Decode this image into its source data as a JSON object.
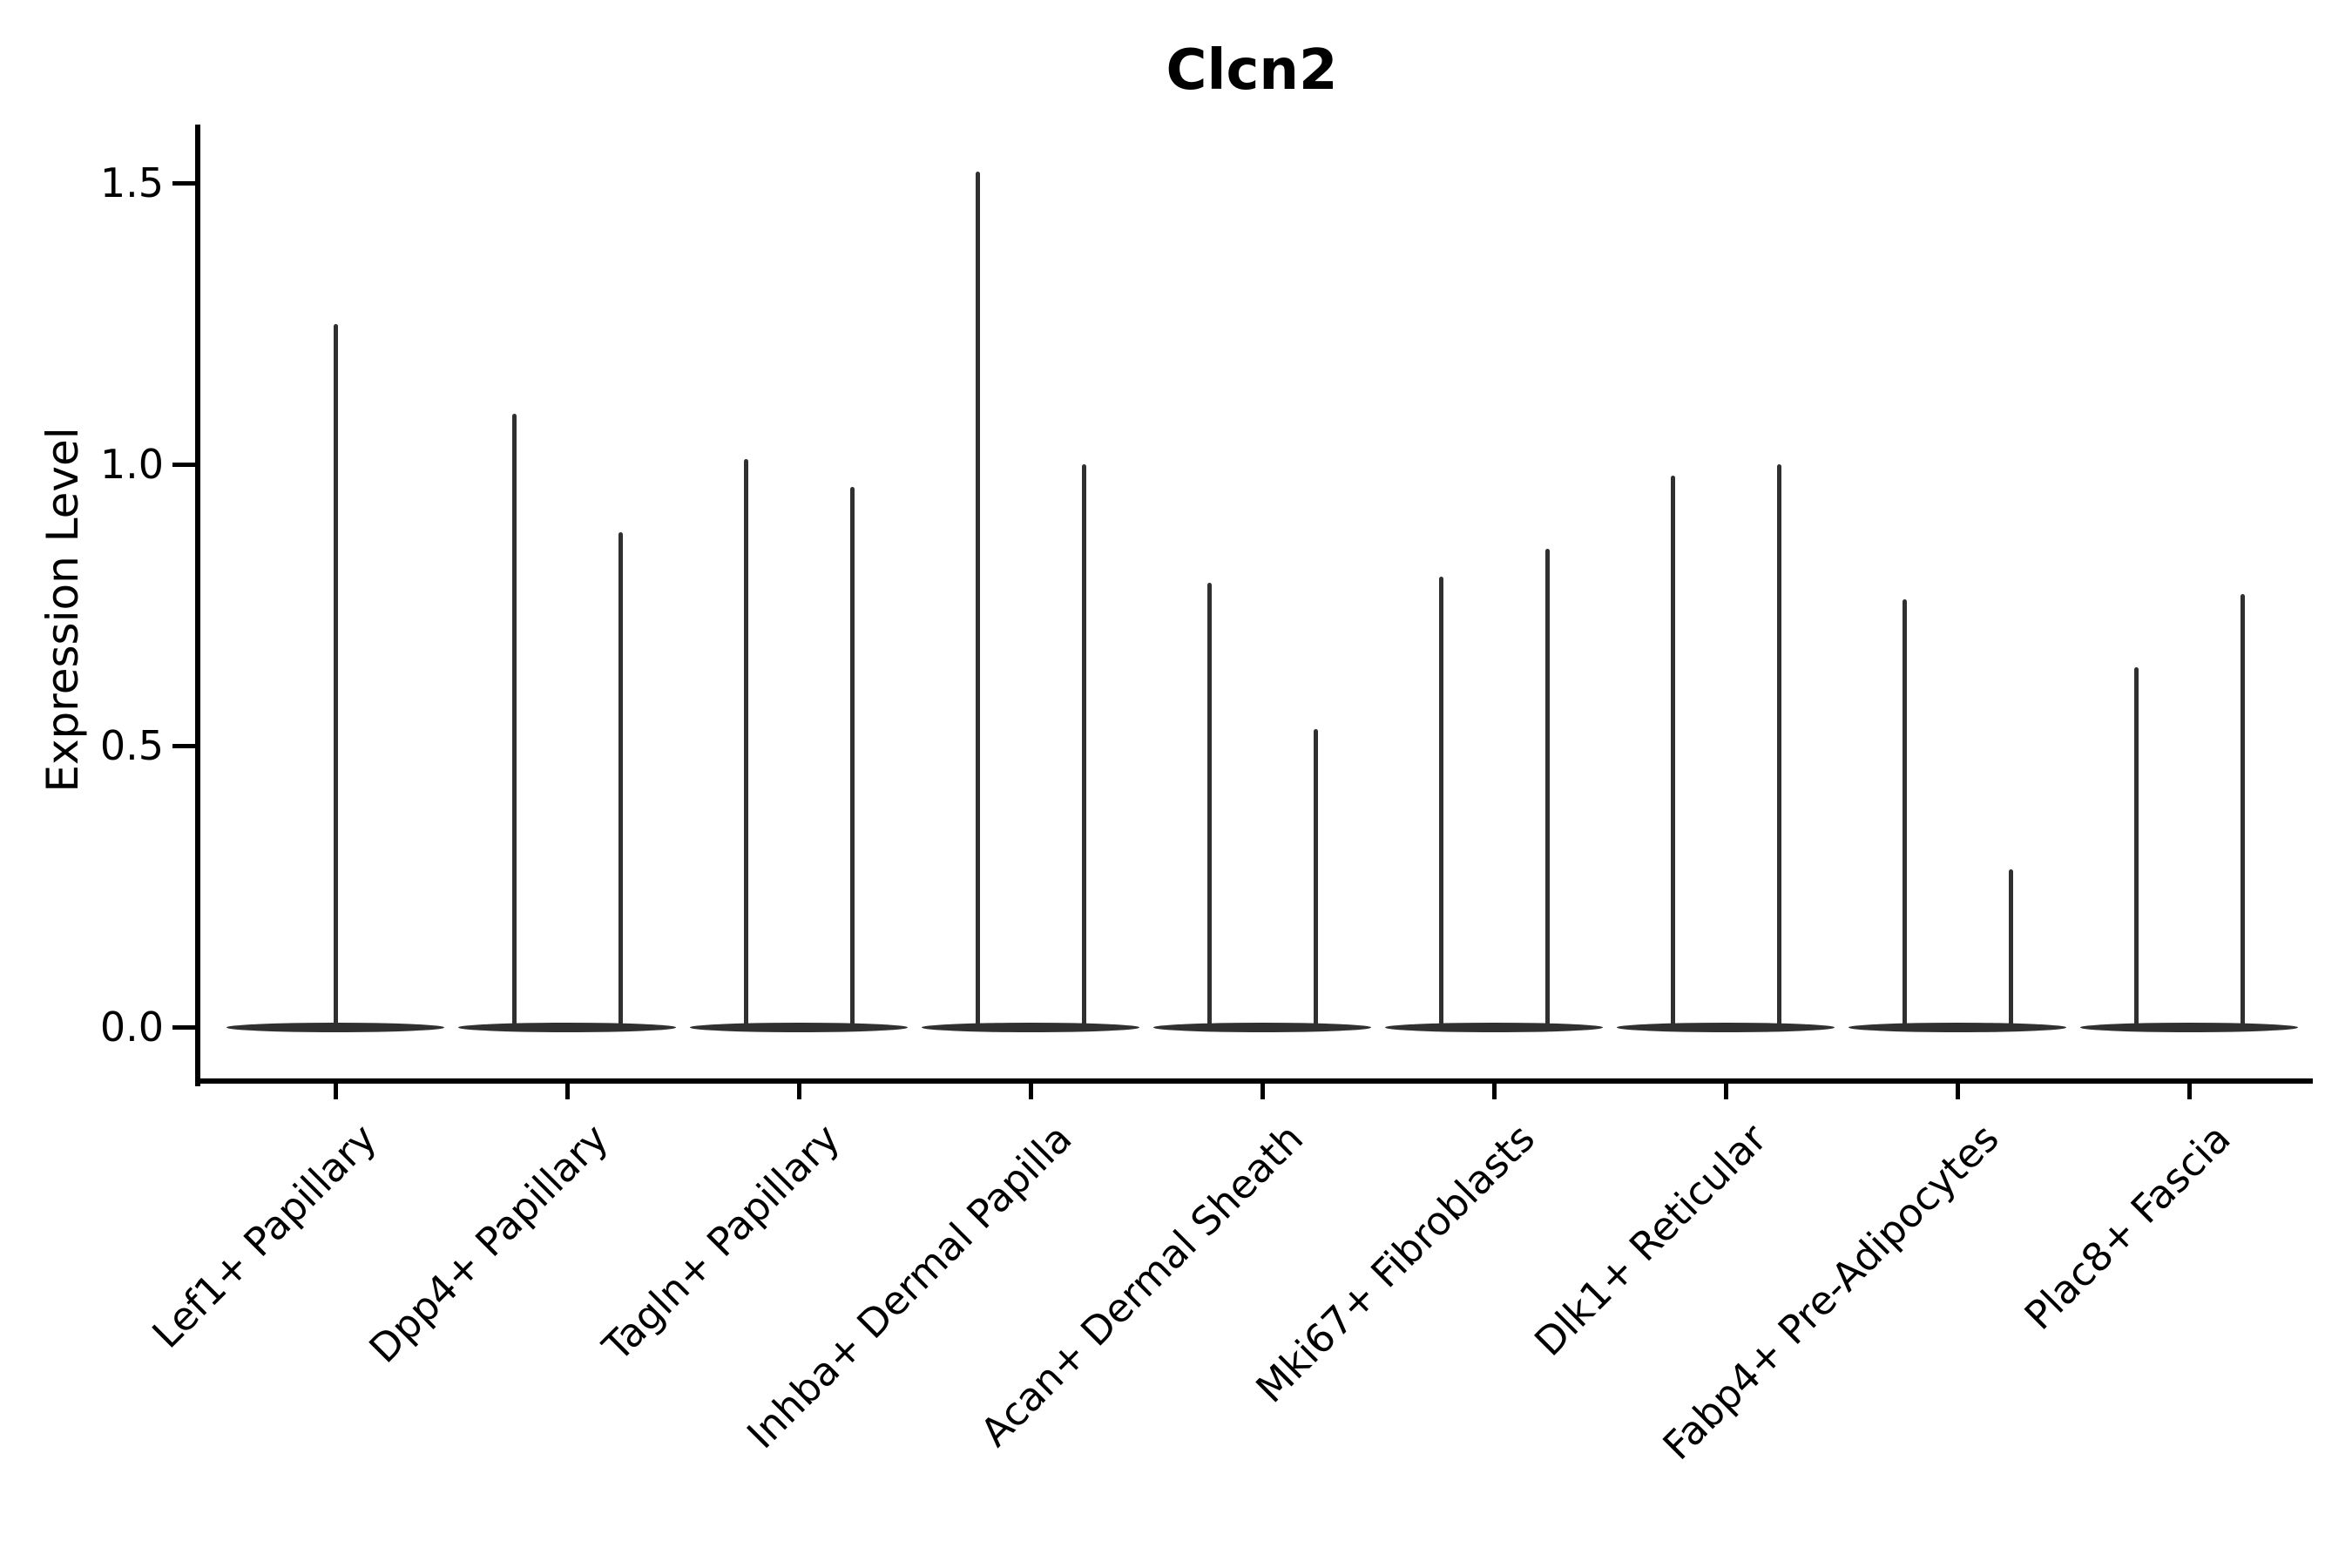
{
  "title": "Clcn2",
  "y_axis": {
    "label": "Expression Level",
    "tick_labels": [
      "0.0",
      "0.5",
      "1.0",
      "1.5"
    ]
  },
  "colors": {
    "background": "#ffffff",
    "axis": "#000000",
    "text": "#000000",
    "violin": "#303030"
  },
  "chart_data": {
    "type": "violin",
    "title": "Clcn2",
    "xlabel": "",
    "ylabel": "Expression Level",
    "yticks": [
      0.0,
      0.5,
      1.0,
      1.5
    ],
    "ylim": [
      -0.095,
      1.6
    ],
    "grid": false,
    "legend_position": "none",
    "categories": [
      "Lef1+ Papillary",
      "Dpp4+ Papillary",
      "Tagln+ Papillary",
      "Inhba+ Dermal Papilla",
      "Acan+ Dermal Sheath",
      "Mki67+ Fibroblasts",
      "Dlk1+ Reticular",
      "Fabp4+ Pre-Adipocytes",
      "Plac8+ Fascia"
    ],
    "description": "Violin plot of Clcn2 expression; most cells at 0 giving flat violin bases with thin density spikes up to the maximum expression. Categories 2-9 contain two side-by-side violins; category 1 has a single centered violin.",
    "violins": [
      {
        "category": "Lef1+ Papillary",
        "spike_peaks": [
          1.25
        ]
      },
      {
        "category": "Dpp4+ Papillary",
        "spike_peaks": [
          1.09,
          0.88
        ]
      },
      {
        "category": "Tagln+ Papillary",
        "spike_peaks": [
          1.01,
          0.96
        ]
      },
      {
        "category": "Inhba+ Dermal Papilla",
        "spike_peaks": [
          1.52,
          1.0
        ]
      },
      {
        "category": "Acan+ Dermal Sheath",
        "spike_peaks": [
          0.79,
          0.53
        ]
      },
      {
        "category": "Mki67+ Fibroblasts",
        "spike_peaks": [
          0.8,
          0.85
        ]
      },
      {
        "category": "Dlk1+ Reticular",
        "spike_peaks": [
          0.98,
          1.0
        ]
      },
      {
        "category": "Fabp4+ Pre-Adipocytes",
        "spike_peaks": [
          0.76,
          0.28
        ]
      },
      {
        "category": "Plac8+ Fascia",
        "spike_peaks": [
          0.64,
          0.77
        ]
      }
    ]
  }
}
